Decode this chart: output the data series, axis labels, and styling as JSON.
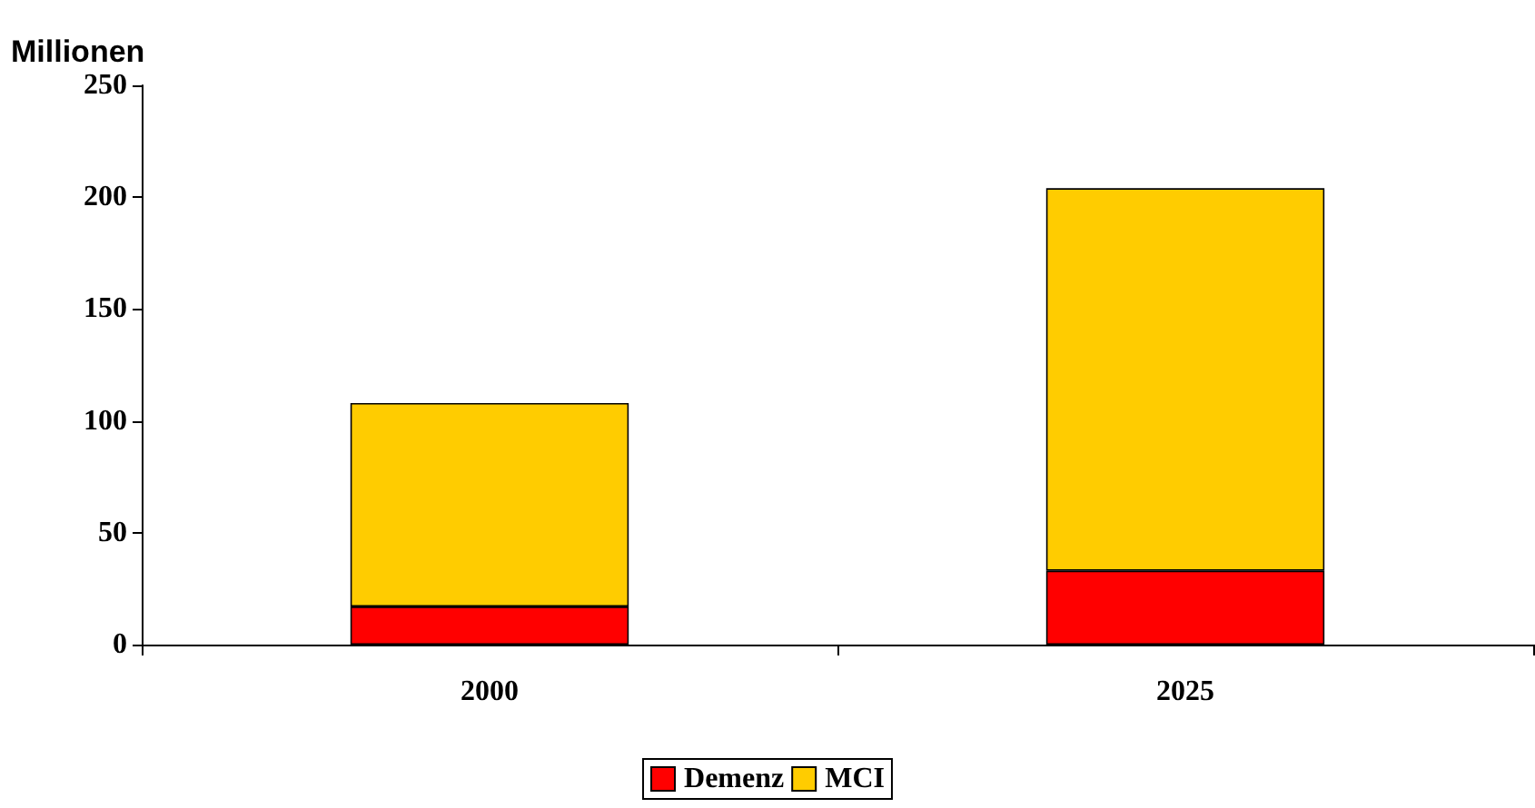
{
  "chart_data": {
    "type": "bar",
    "stacked": true,
    "ylabel": "Millionen",
    "categories": [
      "2000",
      "2025"
    ],
    "series": [
      {
        "name": "Demenz",
        "color": "#ff0000",
        "values": [
          17,
          33
        ]
      },
      {
        "name": "MCI",
        "color": "#ffcc00",
        "values": [
          91,
          171
        ]
      }
    ],
    "ylim": [
      0,
      250
    ],
    "yticks": [
      0,
      50,
      100,
      150,
      200,
      250
    ],
    "grid": false,
    "legend": "bottom"
  }
}
